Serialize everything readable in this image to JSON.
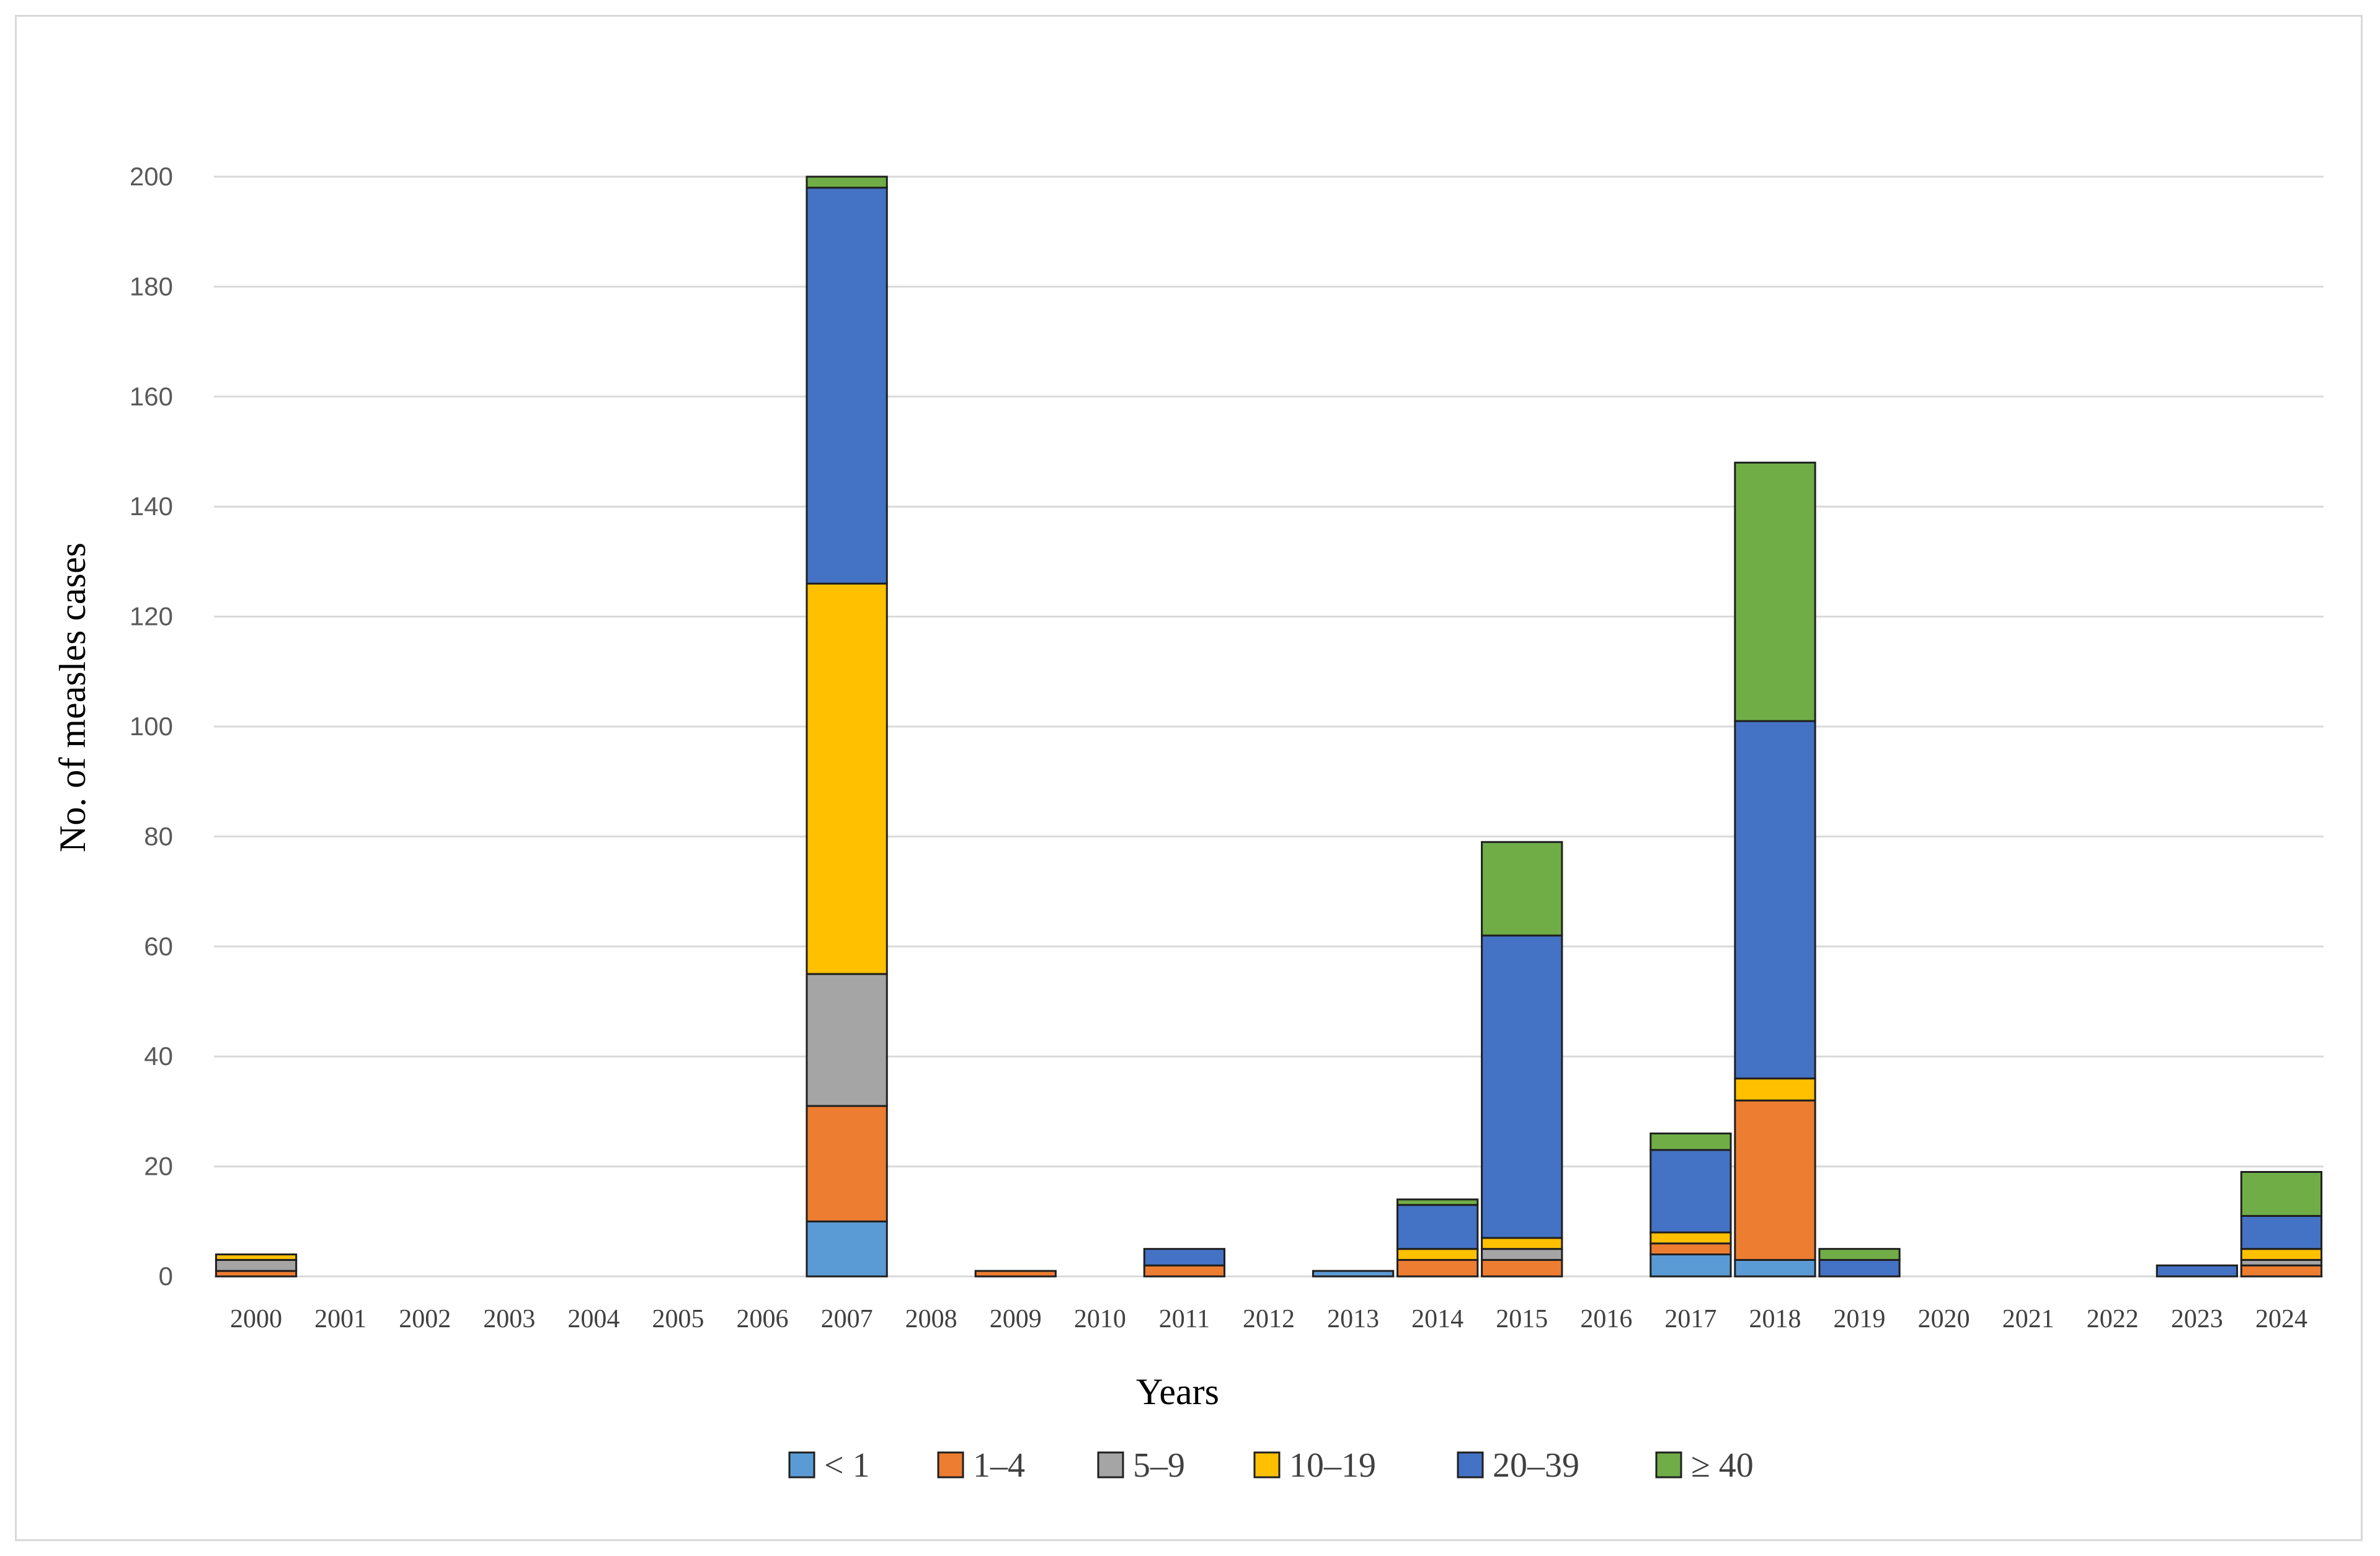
{
  "chart_data": {
    "type": "bar",
    "stacked": true,
    "title": "",
    "xlabel": "Years",
    "ylabel": "No. of measles cases",
    "ylim": [
      0,
      200
    ],
    "yticks": [
      "0",
      "20",
      "40",
      "60",
      "80",
      "100",
      "120",
      "140",
      "160",
      "180",
      "200"
    ],
    "grid": true,
    "legend_position": "bottom",
    "categories": [
      "2000",
      "2001",
      "2002",
      "2003",
      "2004",
      "2005",
      "2006",
      "2007",
      "2008",
      "2009",
      "2010",
      "2011",
      "2012",
      "2013",
      "2014",
      "2015",
      "2016",
      "2017",
      "2018",
      "2019",
      "2020",
      "2021",
      "2022",
      "2023",
      "2024"
    ],
    "series": [
      {
        "name": "< 1",
        "color": "#5B9BD5",
        "values": [
          0,
          0,
          0,
          0,
          0,
          0,
          0,
          10,
          0,
          0,
          0,
          0,
          0,
          1,
          0,
          0,
          0,
          4,
          3,
          0,
          0,
          0,
          0,
          0,
          0
        ]
      },
      {
        "name": "1–4",
        "color": "#ED7D31",
        "values": [
          1,
          0,
          0,
          0,
          0,
          0,
          0,
          21,
          0,
          1,
          0,
          2,
          0,
          0,
          3,
          3,
          0,
          2,
          29,
          0,
          0,
          0,
          0,
          0,
          2
        ]
      },
      {
        "name": "5–9",
        "color": "#A5A5A5",
        "values": [
          2,
          0,
          0,
          0,
          0,
          0,
          0,
          24,
          0,
          0,
          0,
          0,
          0,
          0,
          0,
          2,
          0,
          0,
          0,
          0,
          0,
          0,
          0,
          0,
          1
        ]
      },
      {
        "name": "10–19",
        "color": "#FFC000",
        "values": [
          1,
          0,
          0,
          0,
          0,
          0,
          0,
          71,
          0,
          0,
          0,
          0,
          0,
          0,
          2,
          2,
          0,
          2,
          4,
          0,
          0,
          0,
          0,
          0,
          2
        ]
      },
      {
        "name": "20–39",
        "color": "#4472C4",
        "values": [
          0,
          0,
          0,
          0,
          0,
          0,
          0,
          72,
          0,
          0,
          0,
          3,
          0,
          0,
          8,
          55,
          0,
          15,
          65,
          3,
          0,
          0,
          0,
          2,
          6
        ]
      },
      {
        "name": "≥ 40",
        "color": "#70AD47",
        "values": [
          0,
          0,
          0,
          0,
          0,
          0,
          0,
          2,
          0,
          0,
          0,
          0,
          0,
          0,
          1,
          17,
          0,
          3,
          47,
          2,
          0,
          0,
          0,
          0,
          8
        ]
      }
    ]
  }
}
